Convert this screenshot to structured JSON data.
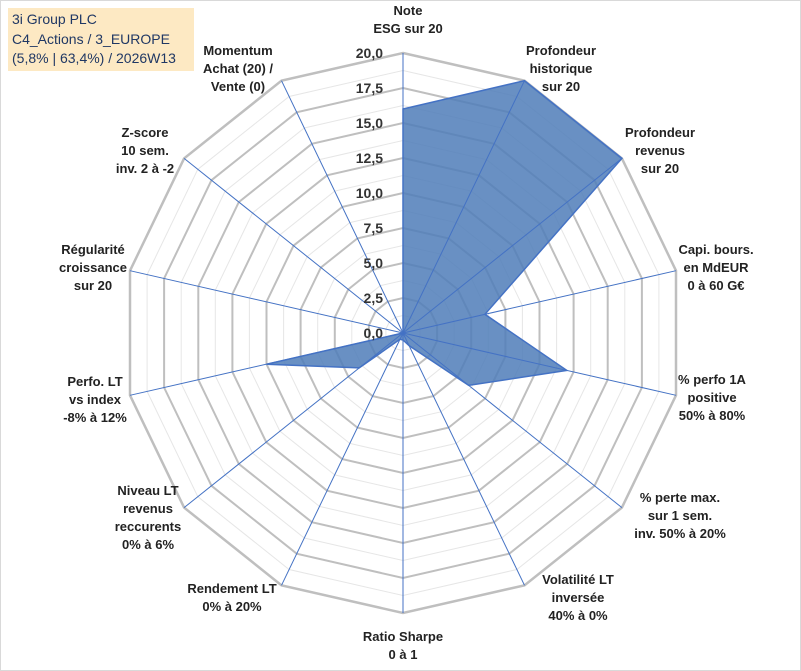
{
  "header": {
    "line1": "3i Group PLC",
    "line2": "C4_Actions / 3_EUROPE",
    "line3": "(5,8% | 63,4%) / 2026W13"
  },
  "colors": {
    "fill": "#4f7db8",
    "stroke": "#4472c4",
    "grid_major": "#bfbfbf",
    "grid_minor": "#e6e6e6",
    "title_bg": "#fde9c3",
    "title_text": "#203864"
  },
  "chart_data": {
    "type": "radar",
    "title": "",
    "rmin": 0,
    "rmax": 20,
    "tick_step": 2.5,
    "tick_labels": [
      "0,0",
      "2,5",
      "5,0",
      "7,5",
      "10,0",
      "12,5",
      "15,0",
      "17,5",
      "20,0"
    ],
    "axes": [
      {
        "label": [
          "Note",
          "ESG sur 20"
        ],
        "value": 16.0
      },
      {
        "label": [
          "Profondeur",
          "historique",
          "sur 20"
        ],
        "value": 20.0
      },
      {
        "label": [
          "Profondeur",
          "revenus",
          "sur 20"
        ],
        "value": 20.0
      },
      {
        "label": [
          "Capi. bours.",
          "en MdEUR",
          "0 à 60 G€"
        ],
        "value": 6.0
      },
      {
        "label": [
          "% perfo 1A",
          "positive",
          "50% à 80%"
        ],
        "value": 12.0
      },
      {
        "label": [
          "% perte max.",
          "sur 1 sem.",
          "inv. 50% à 20%"
        ],
        "value": 6.0
      },
      {
        "label": [
          "Volatilité LT",
          "inversée",
          "40% à 0%"
        ],
        "value": 1.0
      },
      {
        "label": [
          "Ratio Sharpe",
          "0 à 1"
        ],
        "value": 0.5
      },
      {
        "label": [
          "Rendement LT",
          "0% à 20%"
        ],
        "value": 0.5
      },
      {
        "label": [
          "Niveau LT",
          "revenus",
          "reccurents",
          "0% à 6%"
        ],
        "value": 4.0
      },
      {
        "label": [
          "Perfo. LT",
          "vs index",
          "-8% à 12%"
        ],
        "value": 10.0
      },
      {
        "label": [
          "Régularité",
          "croissance",
          "sur 20"
        ],
        "value": 0.0
      },
      {
        "label": [
          "Z-score",
          "10 sem.",
          "inv. 2 à -2"
        ],
        "value": 0.0
      },
      {
        "label": [
          "Momentum",
          "Achat (20) /",
          "Vente (0)"
        ],
        "value": 0.0
      }
    ]
  }
}
